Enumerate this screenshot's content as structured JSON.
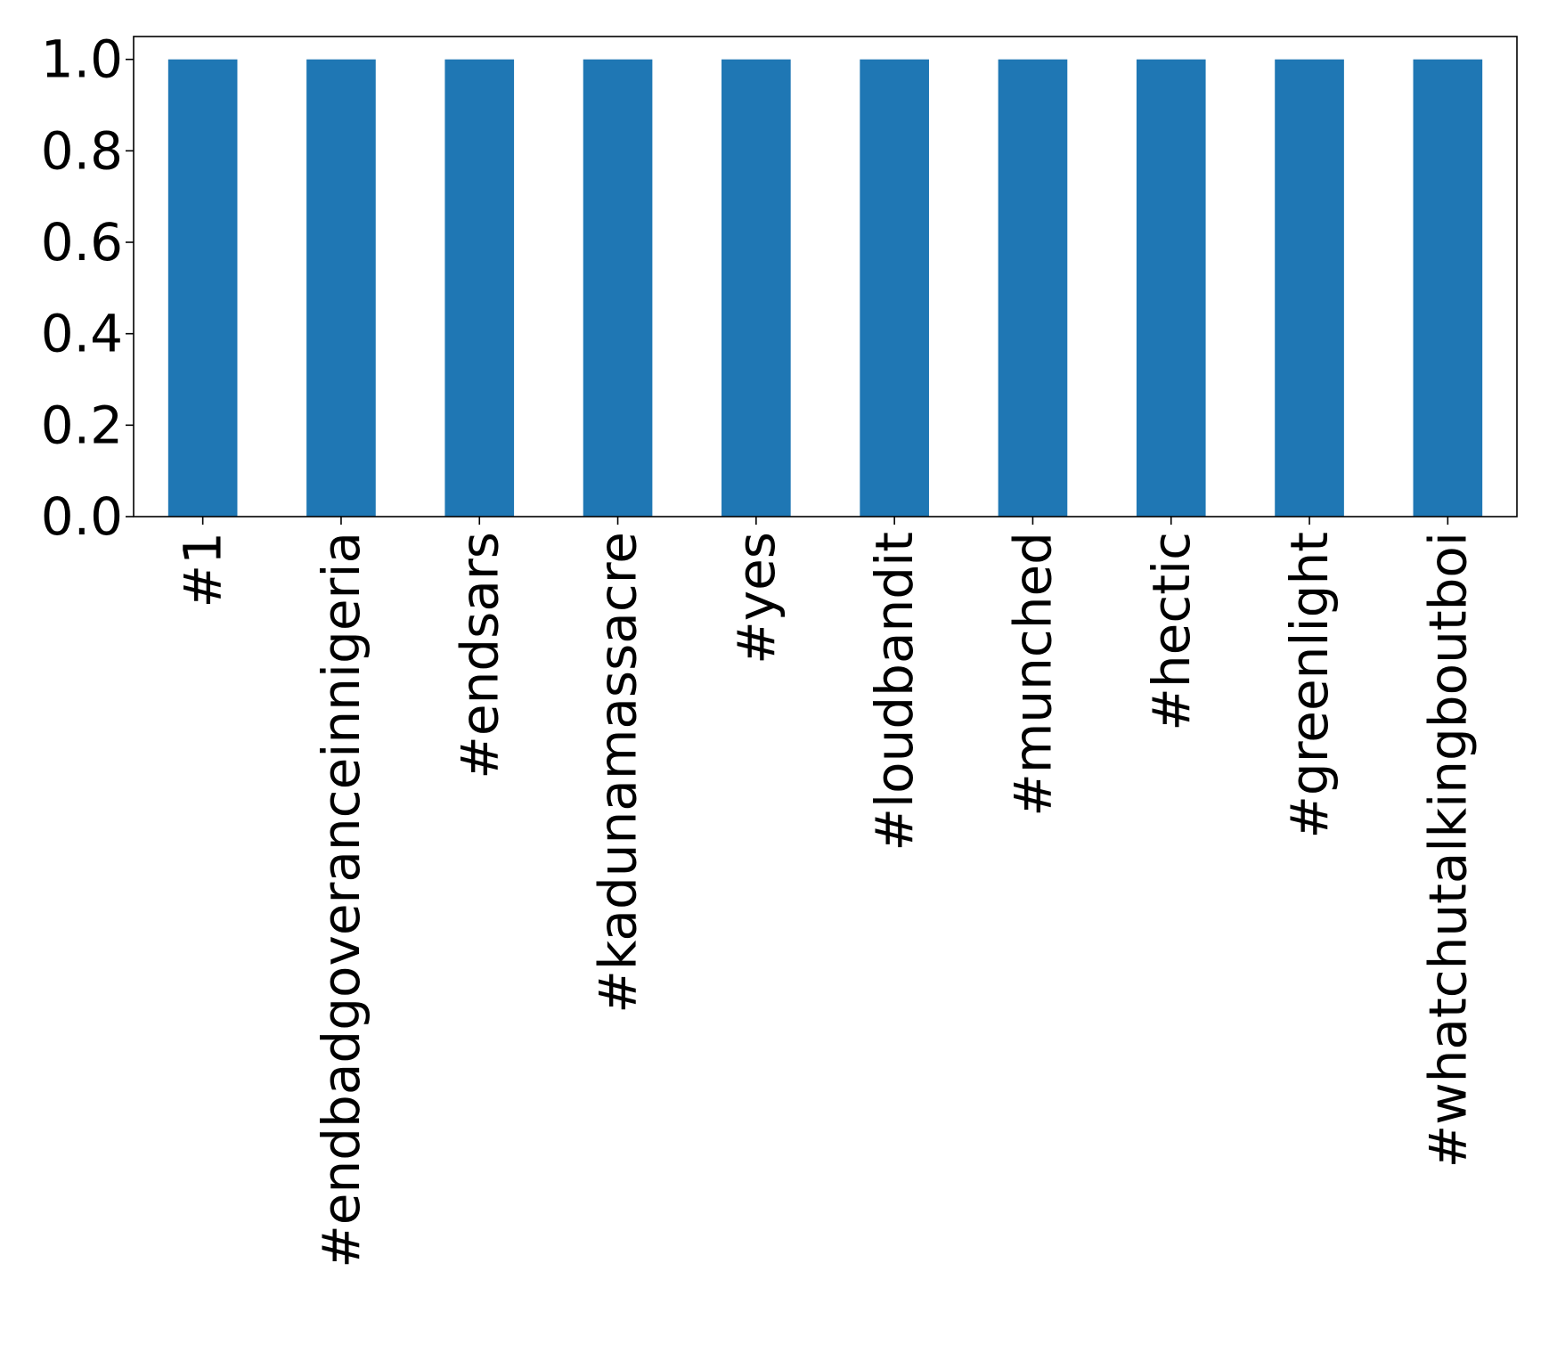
{
  "chart_data": {
    "type": "bar",
    "title": "",
    "xlabel": "",
    "ylabel": "",
    "categories": [
      "#1",
      "#endbadgoveranceinnigeria",
      "#endsars",
      "#kadunamassacre",
      "#yes",
      "#loudbandit",
      "#munched",
      "#hectic",
      "#greenlight",
      "#whatchutalkingboutboi"
    ],
    "series": [
      {
        "values": [
          1.0,
          1.0,
          1.0,
          1.0,
          1.0,
          1.0,
          1.0,
          1.0,
          1.0,
          1.0
        ],
        "color": "#1f77b4"
      }
    ],
    "ylim": [
      0,
      1.05
    ],
    "yticks": [
      0.0,
      0.2,
      0.4,
      0.6,
      0.8,
      1.0
    ],
    "ytick_labels": [
      "0.0",
      "0.2",
      "0.4",
      "0.6",
      "0.8",
      "1.0"
    ],
    "grid": false,
    "legend": "none"
  }
}
